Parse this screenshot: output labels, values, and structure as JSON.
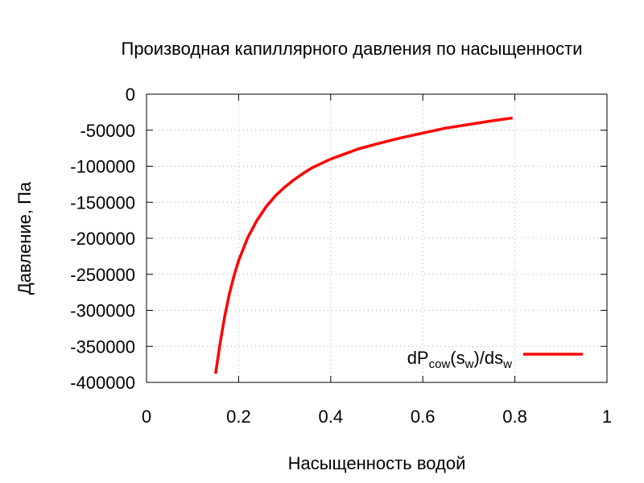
{
  "chart_data": {
    "type": "line",
    "title": "Производная капиллярного давления по насыщенности",
    "xlabel": "Насыщенность водой",
    "ylabel": "Давление, Па",
    "xlim": [
      0,
      1
    ],
    "ylim": [
      -400000,
      0
    ],
    "x_ticks": [
      "0",
      "0.2",
      "0.4",
      "0.6",
      "0.8",
      "1"
    ],
    "y_ticks": [
      "0",
      "-50000",
      "-100000",
      "-150000",
      "-200000",
      "-250000",
      "-300000",
      "-350000",
      "-400000"
    ],
    "grid": true,
    "legend_position": "bottom-right",
    "series": [
      {
        "legend": {
          "main1": "dP",
          "sub1": "cow",
          "main2": "(s",
          "sub2": "w",
          "main3": ")/ds",
          "sub3": "w"
        },
        "color": "#ff0000",
        "points": [
          [
            0.15,
            -388000
          ],
          [
            0.16,
            -345000
          ],
          [
            0.17,
            -308000
          ],
          [
            0.18,
            -277000
          ],
          [
            0.19,
            -252000
          ],
          [
            0.2,
            -231000
          ],
          [
            0.22,
            -199000
          ],
          [
            0.24,
            -175000
          ],
          [
            0.26,
            -156000
          ],
          [
            0.28,
            -141000
          ],
          [
            0.3,
            -129000
          ],
          [
            0.32,
            -119000
          ],
          [
            0.34,
            -110000
          ],
          [
            0.36,
            -102000
          ],
          [
            0.38,
            -96000
          ],
          [
            0.4,
            -90000
          ],
          [
            0.43,
            -83000
          ],
          [
            0.46,
            -76000
          ],
          [
            0.5,
            -69000
          ],
          [
            0.55,
            -61000
          ],
          [
            0.6,
            -54000
          ],
          [
            0.65,
            -47000
          ],
          [
            0.7,
            -42000
          ],
          [
            0.75,
            -37000
          ],
          [
            0.795,
            -33000
          ]
        ]
      }
    ]
  }
}
